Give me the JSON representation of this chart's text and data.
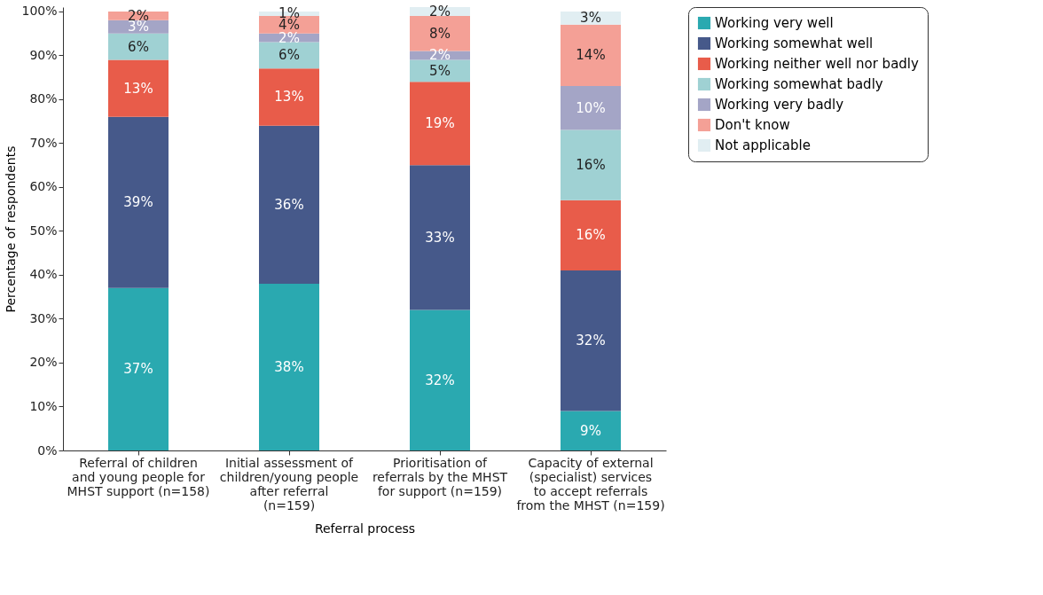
{
  "chart_data": {
    "type": "bar",
    "stacked": true,
    "xlabel": "Referral process",
    "ylabel": "Percentage of respondents",
    "categories": [
      "Referral of children and young people for MHST support (n=158)",
      "Initial assessment of children/young people after referral (n=159)",
      "Prioritisation of referrals by the MHST for support (n=159)",
      "Capacity of external (specialist) services to accept referrals from the MHST (n=159)"
    ],
    "ylim": [
      0,
      101
    ],
    "yticks": [
      {
        "value": 0,
        "label": "0%"
      },
      {
        "value": 10,
        "label": "10%"
      },
      {
        "value": 20,
        "label": "20%"
      },
      {
        "value": 30,
        "label": "30%"
      },
      {
        "value": 40,
        "label": "40%"
      },
      {
        "value": 50,
        "label": "50%"
      },
      {
        "value": 60,
        "label": "60%"
      },
      {
        "value": 70,
        "label": "70%"
      },
      {
        "value": 80,
        "label": "80%"
      },
      {
        "value": 90,
        "label": "90%"
      },
      {
        "value": 100,
        "label": "100%"
      }
    ],
    "legend": "right",
    "grid": false,
    "series": [
      {
        "name": "Working very well",
        "color": "#2aa9b0",
        "values": [
          37,
          38,
          32,
          9
        ],
        "value_labels": [
          "37%",
          "38%",
          "32%",
          "9%"
        ]
      },
      {
        "name": "Working somewhat well",
        "color": "#46598a",
        "values": [
          39,
          36,
          33,
          32
        ],
        "value_labels": [
          "39%",
          "36%",
          "33%",
          "32%"
        ]
      },
      {
        "name": "Working neither well nor badly",
        "color": "#e85c4a",
        "values": [
          13,
          13,
          19,
          16
        ],
        "value_labels": [
          "13%",
          "13%",
          "19%",
          "16%"
        ]
      },
      {
        "name": "Working somewhat badly",
        "color": "#9fd1d3",
        "values": [
          6,
          6,
          5,
          16
        ],
        "value_labels": [
          "6%",
          "6%",
          "5%",
          "16%"
        ]
      },
      {
        "name": "Working very badly",
        "color": "#a4a5c6",
        "values": [
          3,
          2,
          2,
          10
        ],
        "value_labels": [
          "3%",
          "2%",
          "2%",
          "10%"
        ]
      },
      {
        "name": "Don't know",
        "color": "#f4a096",
        "values": [
          2,
          4,
          8,
          14
        ],
        "value_labels": [
          "2%",
          "4%",
          "8%",
          "14%"
        ]
      },
      {
        "name": "Not applicable",
        "color": "#e1eef2",
        "values": [
          null,
          1,
          2,
          3
        ],
        "value_labels": [
          null,
          "1%",
          "2%",
          "3%"
        ]
      }
    ]
  }
}
